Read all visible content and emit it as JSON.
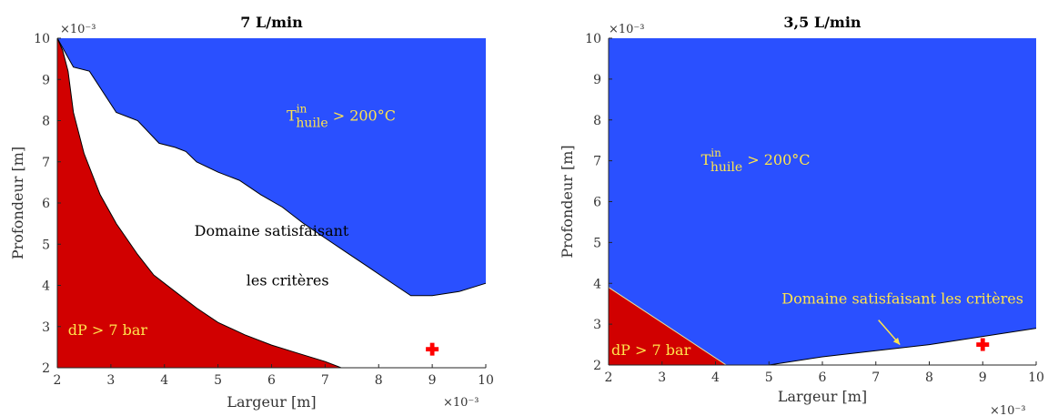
{
  "colors": {
    "blue": "#2a50ff",
    "red": "#d10000",
    "yellow": "#ffe44d",
    "marker": "#ff0000",
    "boundary": "#000000"
  },
  "chart_data": [
    {
      "type": "area",
      "title": "7 L/min",
      "xlabel": "Largeur [m]",
      "ylabel": "Profondeur [m]",
      "xlim": [
        2,
        10
      ],
      "ylim": [
        2,
        10
      ],
      "x_exponent": "×10⁻³",
      "y_exponent": "×10⁻³",
      "x_exponent_position": "bottom-right",
      "y_exponent_position": "top-left",
      "xticks": [
        "2",
        "3",
        "4",
        "5",
        "6",
        "7",
        "8",
        "9",
        "10"
      ],
      "yticks": [
        "2",
        "3",
        "4",
        "5",
        "6",
        "7",
        "8",
        "9",
        "10"
      ],
      "grid": false,
      "regions": [
        {
          "name": "T_huile^in > 200°C",
          "color": "#2a50ff",
          "boundary": [
            [
              2.0,
              10.0
            ],
            [
              2.3,
              9.3
            ],
            [
              2.6,
              9.2
            ],
            [
              3.1,
              8.2
            ],
            [
              3.5,
              8.0
            ],
            [
              3.9,
              7.45
            ],
            [
              4.2,
              7.35
            ],
            [
              4.4,
              7.25
            ],
            [
              4.6,
              7.0
            ],
            [
              5.0,
              6.75
            ],
            [
              5.4,
              6.55
            ],
            [
              5.8,
              6.2
            ],
            [
              6.2,
              5.9
            ],
            [
              6.6,
              5.5
            ],
            [
              7.0,
              5.15
            ],
            [
              7.4,
              4.8
            ],
            [
              7.8,
              4.45
            ],
            [
              8.2,
              4.1
            ],
            [
              8.6,
              3.75
            ],
            [
              9.0,
              3.75
            ],
            [
              9.5,
              3.85
            ],
            [
              10.0,
              4.05
            ]
          ]
        },
        {
          "name": "dP > 7 bar",
          "color": "#d10000",
          "boundary": [
            [
              2.0,
              10.0
            ],
            [
              2.1,
              9.7
            ],
            [
              2.2,
              9.2
            ],
            [
              2.3,
              8.2
            ],
            [
              2.5,
              7.2
            ],
            [
              2.8,
              6.2
            ],
            [
              3.1,
              5.5
            ],
            [
              3.5,
              4.75
            ],
            [
              3.8,
              4.25
            ],
            [
              4.2,
              3.85
            ],
            [
              4.6,
              3.45
            ],
            [
              5.0,
              3.1
            ],
            [
              5.5,
              2.8
            ],
            [
              6.0,
              2.55
            ],
            [
              6.5,
              2.35
            ],
            [
              7.0,
              2.15
            ],
            [
              7.2,
              2.05
            ],
            [
              7.3,
              2.0
            ]
          ]
        }
      ],
      "annotations": [
        {
          "text": "Domaine satisfaisant",
          "x": 6.0,
          "y": 5.2
        },
        {
          "text": "les critères",
          "x": 6.3,
          "y": 4.0
        },
        {
          "text": "dP > 7 bar",
          "x": 2.2,
          "y": 2.8,
          "color": "#ffe44d"
        },
        {
          "text": "T",
          "sup": "in",
          "sub": "huile",
          "rest": " > 200°C",
          "x": 7.3,
          "y": 8.0,
          "color": "#ffe44d"
        }
      ],
      "marker": {
        "symbol": "+",
        "x": 9.0,
        "y": 2.45,
        "color": "#ff0000"
      }
    },
    {
      "type": "area",
      "title": "3,5 L/min",
      "xlabel": "Largeur [m]",
      "ylabel": "Profondeur [m]",
      "xlim": [
        2,
        10
      ],
      "ylim": [
        2,
        10
      ],
      "x_exponent": "×10⁻³",
      "y_exponent": "×10⁻³",
      "x_exponent_position": "bottom-right",
      "y_exponent_position": "top-left",
      "xticks": [
        "2",
        "3",
        "4",
        "5",
        "6",
        "7",
        "8",
        "9",
        "10"
      ],
      "yticks": [
        "2",
        "3",
        "4",
        "5",
        "6",
        "7",
        "8",
        "9",
        "10"
      ],
      "grid": false,
      "regions": [
        {
          "name": "T_huile^in > 200°C",
          "color": "#2a50ff",
          "boundary": [
            [
              2.0,
              3.9
            ],
            [
              4.2,
              2.0
            ],
            [
              5.0,
              2.0
            ],
            [
              6.0,
              2.2
            ],
            [
              7.0,
              2.35
            ],
            [
              8.0,
              2.5
            ],
            [
              9.0,
              2.7
            ],
            [
              10.0,
              2.9
            ]
          ]
        },
        {
          "name": "dP > 7 bar",
          "color": "#d10000",
          "boundary": [
            [
              2.0,
              3.9
            ],
            [
              4.2,
              2.0
            ]
          ]
        }
      ],
      "annotations": [
        {
          "text": "Domaine satisfaisant les critères",
          "x": 7.5,
          "y": 3.5,
          "color": "#ffe44d",
          "arrow_to": [
            7.45,
            2.5
          ]
        },
        {
          "text": "dP > 7 bar",
          "x": 2.05,
          "y": 2.25,
          "color": "#ffe44d"
        },
        {
          "text": "T",
          "sup": "in",
          "sub": "huile",
          "rest": " > 200°C",
          "x": 4.75,
          "y": 6.9,
          "color": "#ffe44d"
        }
      ],
      "marker": {
        "symbol": "+",
        "x": 9.0,
        "y": 2.5,
        "color": "#ff0000"
      }
    }
  ]
}
